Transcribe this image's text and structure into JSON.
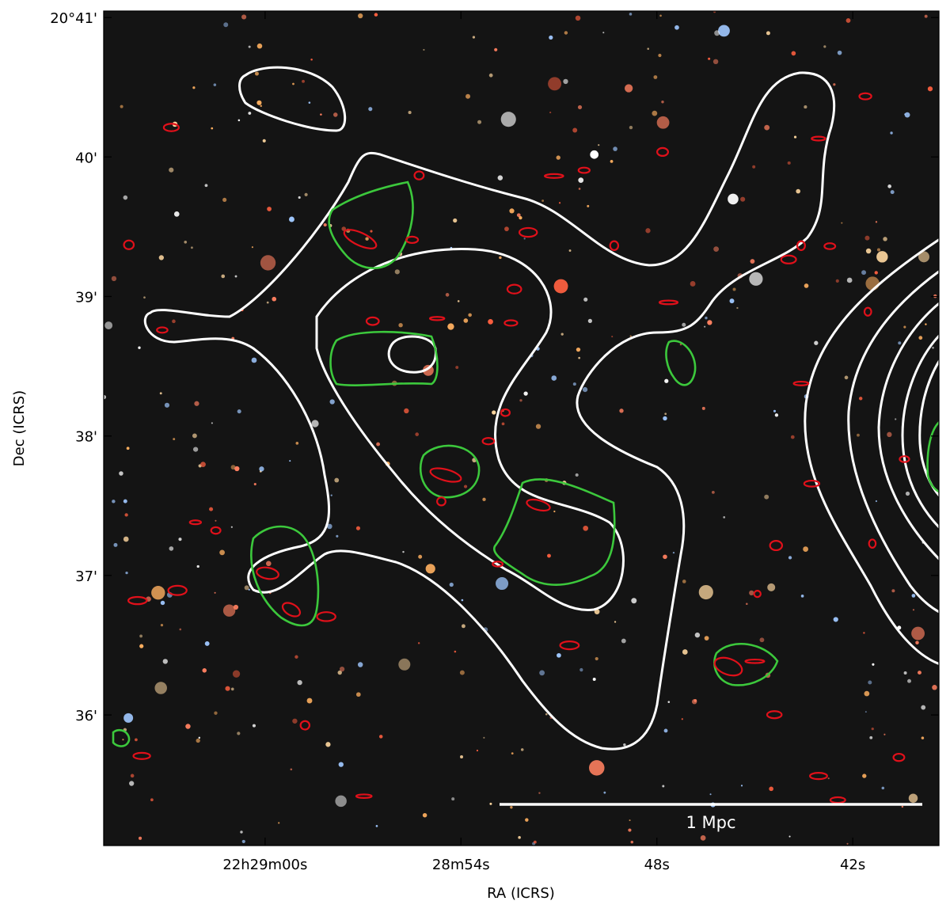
{
  "chart_data": {
    "type": "sky-image",
    "xlabel": "RA (ICRS)",
    "ylabel": "Dec (ICRS)",
    "xlim": [
      337.2706,
      337.164
    ],
    "ylim": [
      20.5844,
      20.6841
    ],
    "xticks": [
      {
        "value": 337.25,
        "label": "22h29m00s"
      },
      {
        "value": 337.225,
        "label": "28m54s"
      },
      {
        "value": 337.2,
        "label": "48s"
      },
      {
        "value": 337.175,
        "label": "42s"
      }
    ],
    "yticks": [
      {
        "value": 20.68333,
        "label": "20°41'"
      },
      {
        "value": 20.66667,
        "label": "40'"
      },
      {
        "value": 20.65,
        "label": "39'"
      },
      {
        "value": 20.63333,
        "label": "38'"
      },
      {
        "value": 20.61667,
        "label": "37'"
      },
      {
        "value": 20.6,
        "label": "36'"
      }
    ],
    "scale_bar_label": "1 Mpc"
  }
}
